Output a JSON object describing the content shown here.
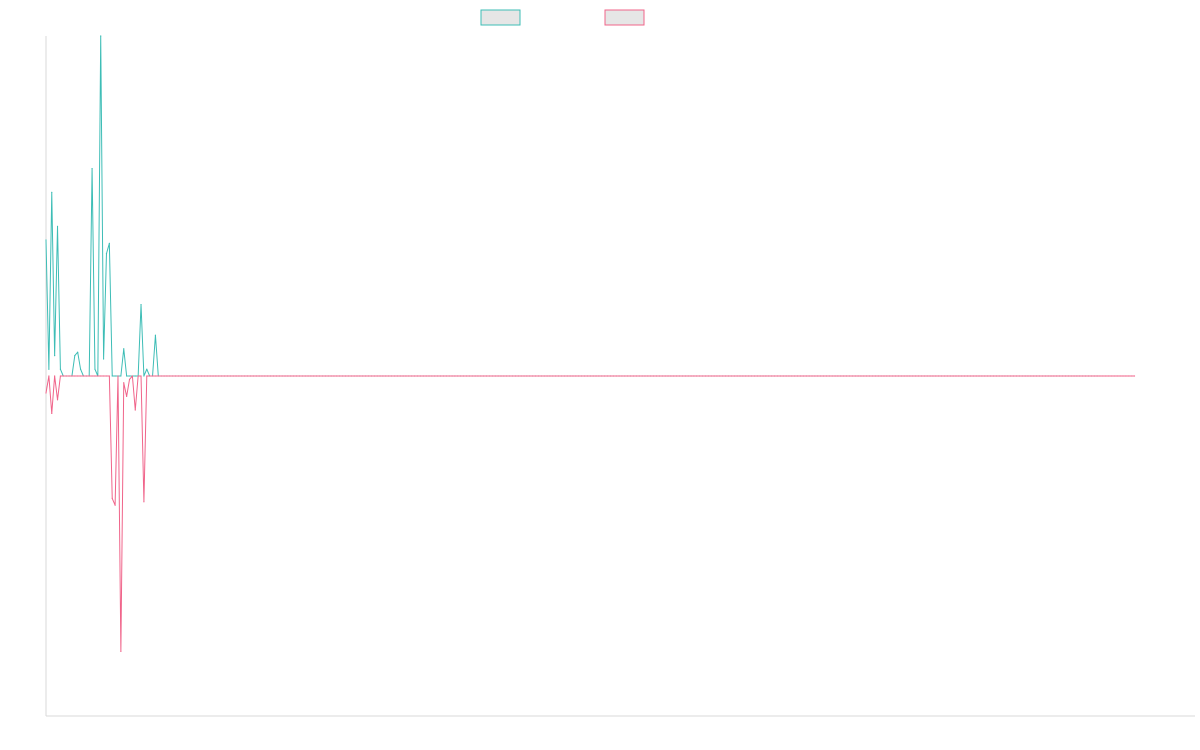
{
  "chart_data": {
    "type": "line",
    "title": "",
    "xlabel": "",
    "ylabel": "",
    "x_count": 400,
    "xlim": [
      0,
      399
    ],
    "ylim": [
      -1.0,
      1.0
    ],
    "grid": false,
    "legend": {
      "position": "top-center",
      "entries": [
        "",
        ""
      ]
    },
    "colors": {
      "series_up": "#3dbdb6",
      "series_down": "#f0648a",
      "legend_fill": "#e6e6e6",
      "axis": "#d9d9d9"
    },
    "series": [
      {
        "values": [
          0.4,
          0.02,
          0.54,
          0.06,
          0.44,
          0.02,
          0.0,
          0.0,
          0.0,
          0.0,
          0.06,
          0.07,
          0.02,
          0.0,
          0.0,
          0.0,
          0.61,
          0.02,
          0.0,
          1.0,
          0.05,
          0.36,
          0.39,
          0.0,
          0.0,
          0.0,
          0.0,
          0.08,
          0.0,
          0.0,
          0.0,
          0.0,
          0.0,
          0.21,
          0.0,
          0.02,
          0.0,
          0.0,
          0.12,
          0.0,
          0.0,
          0.0,
          0.0,
          0.0,
          0.0,
          0.0,
          0.0,
          0.0,
          0.0,
          0.0,
          0.0,
          0.0,
          0.0,
          0.0,
          0.0,
          0.0,
          0.0,
          0.0,
          0.0,
          0.0,
          0.0,
          0.0,
          0.0,
          0.0,
          0.0,
          0.0,
          0.0,
          0.0,
          0.0,
          0.0,
          0.0,
          0.0,
          0.0,
          0.0,
          0.0,
          0.0,
          0.0,
          0.0,
          0.0,
          0.0,
          0.0,
          0.0,
          0.0,
          0.0,
          0.0,
          0.0,
          0.0,
          0.0,
          0.0,
          0.0,
          0.0,
          0.0,
          0.0,
          0.0,
          0.0,
          0.0,
          0.0,
          0.0,
          0.0,
          0.0,
          0.0,
          0.0,
          0.0,
          0.0,
          0.0,
          0.0,
          0.0,
          0.0,
          0.0,
          0.0,
          0.0,
          0.0,
          0.0,
          0.0,
          0.0,
          0.0,
          0.0,
          0.0,
          0.0,
          0.0,
          0.0,
          0.0,
          0.0,
          0.0,
          0.0,
          0.0,
          0.0,
          0.0,
          0.0,
          0.0,
          0.0,
          0.0,
          0.0,
          0.0,
          0.0,
          0.0,
          0.0,
          0.0,
          0.0,
          0.0,
          0.0,
          0.0,
          0.0,
          0.0,
          0.0,
          0.0,
          0.0,
          0.0,
          0.0,
          0.0,
          0.0,
          0.0,
          0.0,
          0.0,
          0.0,
          0.0,
          0.0,
          0.0,
          0.0,
          0.0,
          0.0,
          0.0,
          0.0,
          0.0,
          0.0,
          0.0,
          0.0,
          0.0,
          0.0,
          0.0,
          0.0,
          0.0,
          0.0,
          0.0,
          0.0,
          0.0,
          0.0,
          0.0,
          0.0,
          0.0,
          0.0,
          0.0,
          0.0,
          0.0,
          0.0,
          0.0,
          0.0,
          0.0,
          0.0,
          0.0,
          0.0,
          0.0,
          0.0,
          0.0,
          0.0,
          0.0,
          0.0,
          0.0,
          0.0,
          0.0,
          0.0,
          0.0,
          0.0,
          0.0,
          0.0,
          0.0,
          0.0,
          0.0,
          0.0,
          0.0,
          0.0,
          0.0,
          0.0,
          0.0,
          0.0,
          0.0,
          0.0,
          0.0,
          0.0,
          0.0,
          0.0,
          0.0,
          0.0,
          0.0,
          0.0,
          0.0,
          0.0,
          0.0,
          0.0,
          0.0,
          0.0,
          0.0,
          0.0,
          0.0,
          0.0,
          0.0,
          0.0,
          0.0,
          0.0,
          0.0,
          0.0,
          0.0,
          0.0,
          0.0,
          0.0,
          0.0,
          0.0,
          0.0,
          0.0,
          0.0,
          0.0,
          0.0,
          0.0,
          0.0,
          0.0,
          0.0,
          0.0,
          0.0,
          0.0,
          0.0,
          0.0,
          0.0,
          0.0,
          0.0,
          0.0,
          0.0,
          0.0,
          0.0,
          0.0,
          0.0,
          0.0,
          0.0,
          0.0,
          0.0,
          0.0,
          0.0,
          0.0,
          0.0,
          0.0,
          0.0,
          0.0,
          0.0,
          0.0,
          0.0,
          0.0,
          0.0,
          0.0,
          0.0,
          0.0,
          0.0,
          0.0,
          0.0,
          0.0,
          0.0,
          0.0,
          0.0,
          0.0,
          0.0,
          0.0,
          0.0,
          0.0,
          0.0,
          0.0,
          0.0,
          0.0,
          0.0,
          0.0,
          0.0,
          0.0,
          0.0,
          0.0,
          0.0,
          0.0,
          0.0,
          0.0,
          0.0,
          0.0,
          0.0,
          0.0,
          0.0,
          0.0,
          0.0,
          0.0,
          0.0,
          0.0,
          0.0,
          0.0,
          0.0,
          0.0,
          0.0,
          0.0,
          0.0,
          0.0,
          0.0,
          0.0,
          0.0,
          0.0,
          0.0,
          0.0,
          0.0,
          0.0,
          0.0,
          0.0,
          0.0,
          0.0,
          0.0,
          0.0,
          0.0,
          0.0,
          0.0,
          0.0,
          0.0,
          0.0,
          0.0,
          0.0,
          0.0,
          0.0,
          0.0,
          0.0,
          0.0,
          0.0,
          0.0,
          0.0,
          0.0,
          0.0,
          0.0
        ]
      },
      {
        "values": [
          -0.05,
          0.0,
          -0.11,
          0.0,
          -0.07,
          0.0,
          0.0,
          0.0,
          0.0,
          0.0,
          0.0,
          0.0,
          0.0,
          0.0,
          0.0,
          0.0,
          0.0,
          0.0,
          0.0,
          0.0,
          0.0,
          0.0,
          0.0,
          -0.36,
          -0.38,
          0.0,
          -0.81,
          -0.02,
          -0.06,
          -0.01,
          0.0,
          -0.1,
          0.0,
          0.0,
          -0.37,
          0.0,
          0.0,
          0.0,
          0.0,
          0.0,
          0.0,
          0.0,
          0.0,
          0.0,
          0.0,
          0.0,
          0.0,
          0.0,
          0.0,
          0.0,
          0.0,
          0.0,
          0.0,
          0.0,
          0.0,
          0.0,
          0.0,
          0.0,
          0.0,
          0.0,
          0.0,
          0.0,
          0.0,
          0.0,
          0.0,
          0.0,
          0.0,
          0.0,
          0.0,
          0.0,
          0.0,
          0.0,
          0.0,
          0.0,
          0.0,
          0.0,
          0.0,
          0.0,
          0.0,
          0.0,
          0.0,
          0.0,
          0.0,
          0.0,
          0.0,
          0.0,
          0.0,
          0.0,
          0.0,
          0.0,
          0.0,
          0.0,
          0.0,
          0.0,
          0.0,
          0.0,
          0.0,
          0.0,
          0.0,
          0.0,
          0.0,
          0.0,
          0.0,
          0.0,
          0.0,
          0.0,
          0.0,
          0.0,
          0.0,
          0.0,
          0.0,
          0.0,
          0.0,
          0.0,
          0.0,
          0.0,
          0.0,
          0.0,
          0.0,
          0.0,
          0.0,
          0.0,
          0.0,
          0.0,
          0.0,
          0.0,
          0.0,
          0.0,
          0.0,
          0.0,
          0.0,
          0.0,
          0.0,
          0.0,
          0.0,
          0.0,
          0.0,
          0.0,
          0.0,
          0.0,
          0.0,
          0.0,
          0.0,
          0.0,
          0.0,
          0.0,
          0.0,
          0.0,
          0.0,
          0.0,
          0.0,
          0.0,
          0.0,
          0.0,
          0.0,
          0.0,
          0.0,
          0.0,
          0.0,
          0.0,
          0.0,
          0.0,
          0.0,
          0.0,
          0.0,
          0.0,
          0.0,
          0.0,
          0.0,
          0.0,
          0.0,
          0.0,
          0.0,
          0.0,
          0.0,
          0.0,
          0.0,
          0.0,
          0.0,
          0.0,
          0.0,
          0.0,
          0.0,
          0.0,
          0.0,
          0.0,
          0.0,
          0.0,
          0.0,
          0.0,
          0.0,
          0.0,
          0.0,
          0.0,
          0.0,
          0.0,
          0.0,
          0.0,
          0.0,
          0.0,
          0.0,
          0.0,
          0.0,
          0.0,
          0.0,
          0.0,
          0.0,
          0.0,
          0.0,
          0.0,
          0.0,
          0.0,
          0.0,
          0.0,
          0.0,
          0.0,
          0.0,
          0.0,
          0.0,
          0.0,
          0.0,
          0.0,
          0.0,
          0.0,
          0.0,
          0.0,
          0.0,
          0.0,
          0.0,
          0.0,
          0.0,
          0.0,
          0.0,
          0.0,
          0.0,
          0.0,
          0.0,
          0.0,
          0.0,
          0.0,
          0.0,
          0.0,
          0.0,
          0.0,
          0.0,
          0.0,
          0.0,
          0.0,
          0.0,
          0.0,
          0.0,
          0.0,
          0.0,
          0.0,
          0.0,
          0.0,
          0.0,
          0.0,
          0.0,
          0.0,
          0.0,
          0.0,
          0.0,
          0.0,
          0.0,
          0.0,
          0.0,
          0.0,
          0.0,
          0.0,
          0.0,
          0.0,
          0.0,
          0.0,
          0.0,
          0.0,
          0.0,
          0.0,
          0.0,
          0.0,
          0.0,
          0.0,
          0.0,
          0.0,
          0.0,
          0.0,
          0.0,
          0.0,
          0.0,
          0.0,
          0.0,
          0.0,
          0.0,
          0.0,
          0.0,
          0.0,
          0.0,
          0.0,
          0.0,
          0.0,
          0.0,
          0.0,
          0.0,
          0.0,
          0.0,
          0.0,
          0.0,
          0.0,
          0.0,
          0.0,
          0.0,
          0.0,
          0.0,
          0.0,
          0.0,
          0.0,
          0.0,
          0.0,
          0.0,
          0.0,
          0.0,
          0.0,
          0.0,
          0.0,
          0.0,
          0.0,
          0.0,
          0.0,
          0.0,
          0.0,
          0.0,
          0.0,
          0.0,
          0.0,
          0.0,
          0.0,
          0.0,
          0.0,
          0.0,
          0.0,
          0.0,
          0.0,
          0.0,
          0.0,
          0.0,
          0.0,
          0.0,
          0.0,
          0.0,
          0.0,
          0.0,
          0.0,
          0.0,
          0.0,
          0.0,
          0.0,
          0.0,
          0.0,
          0.0,
          0.0,
          0.0,
          0.0,
          0.0,
          0.0,
          0.0,
          0.0,
          0.0,
          0.0,
          0.0,
          0.0,
          0.0,
          0.0,
          0.0,
          0.0,
          0.0,
          0.0,
          0.0,
          0.0,
          0.0
        ]
      }
    ]
  }
}
